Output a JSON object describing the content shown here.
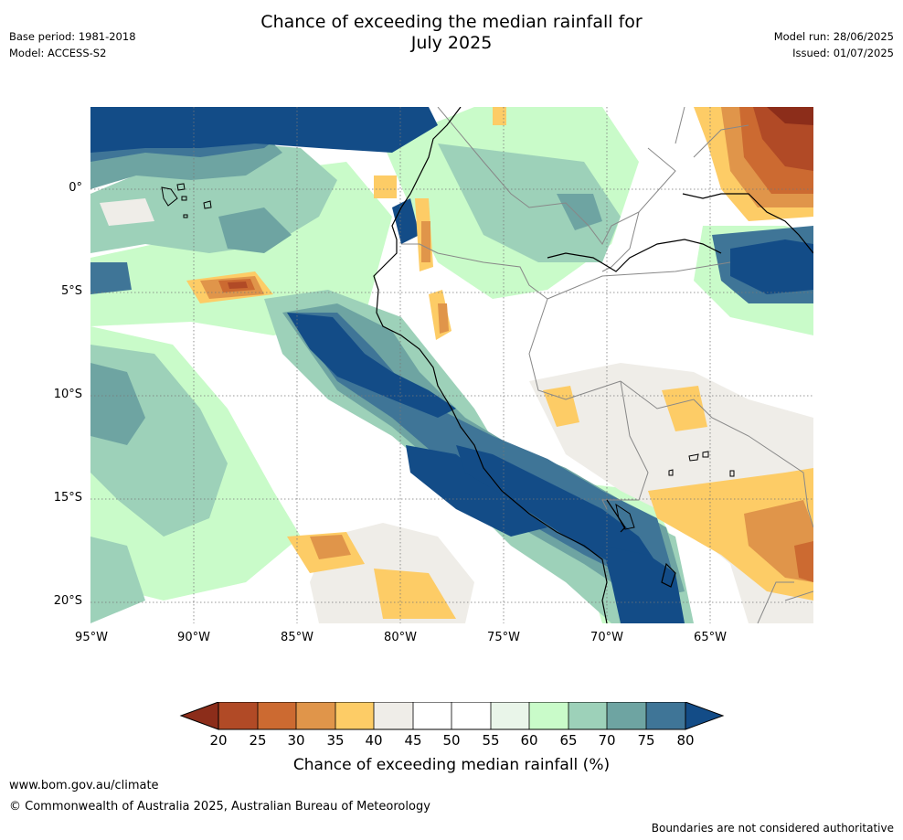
{
  "header": {
    "title_line1": "Chance of exceeding the median rainfall for",
    "title_line2": "July 2025",
    "base_period": "Base period: 1981-2018",
    "model": "Model: ACCESS-S2",
    "model_run": "Model run: 28/06/2025",
    "issued": "Issued: 01/07/2025"
  },
  "map": {
    "lat_labels": [
      "0°",
      "5°S",
      "10°S",
      "15°S",
      "20°S"
    ],
    "lon_labels": [
      "95°W",
      "90°W",
      "85°W",
      "80°W",
      "75°W",
      "70°W",
      "65°W"
    ],
    "land_boundary_color": "#000000",
    "country_boundary_color": "#888888",
    "gridline_style": "dotted"
  },
  "colorbar": {
    "ticks": [
      "20",
      "25",
      "30",
      "35",
      "40",
      "45",
      "50",
      "55",
      "60",
      "65",
      "70",
      "75",
      "80"
    ],
    "title": "Chance of exceeding median rainfall (%)",
    "colors": {
      "below20": "#8c2d1a",
      "c20_25": "#b14a26",
      "c25_30": "#cc6a31",
      "c30_35": "#e0954a",
      "c35_40": "#fdcc66",
      "c40_45": "#efede8",
      "c45_50": "#ffffff",
      "c50_55": "#ffffff",
      "c55_60": "#e9f5e9",
      "c60_65": "#c9fbc9",
      "c65_70": "#9dd1b9",
      "c70_75": "#6ea4a2",
      "c75_80": "#3f7597",
      "above80": "#134c87"
    }
  },
  "footer": {
    "url": "www.bom.gov.au/climate",
    "copyright": "© Commonwealth of Australia 2025, Australian Bureau of Meteorology",
    "disclaimer": "Boundaries are not considered authoritative"
  }
}
